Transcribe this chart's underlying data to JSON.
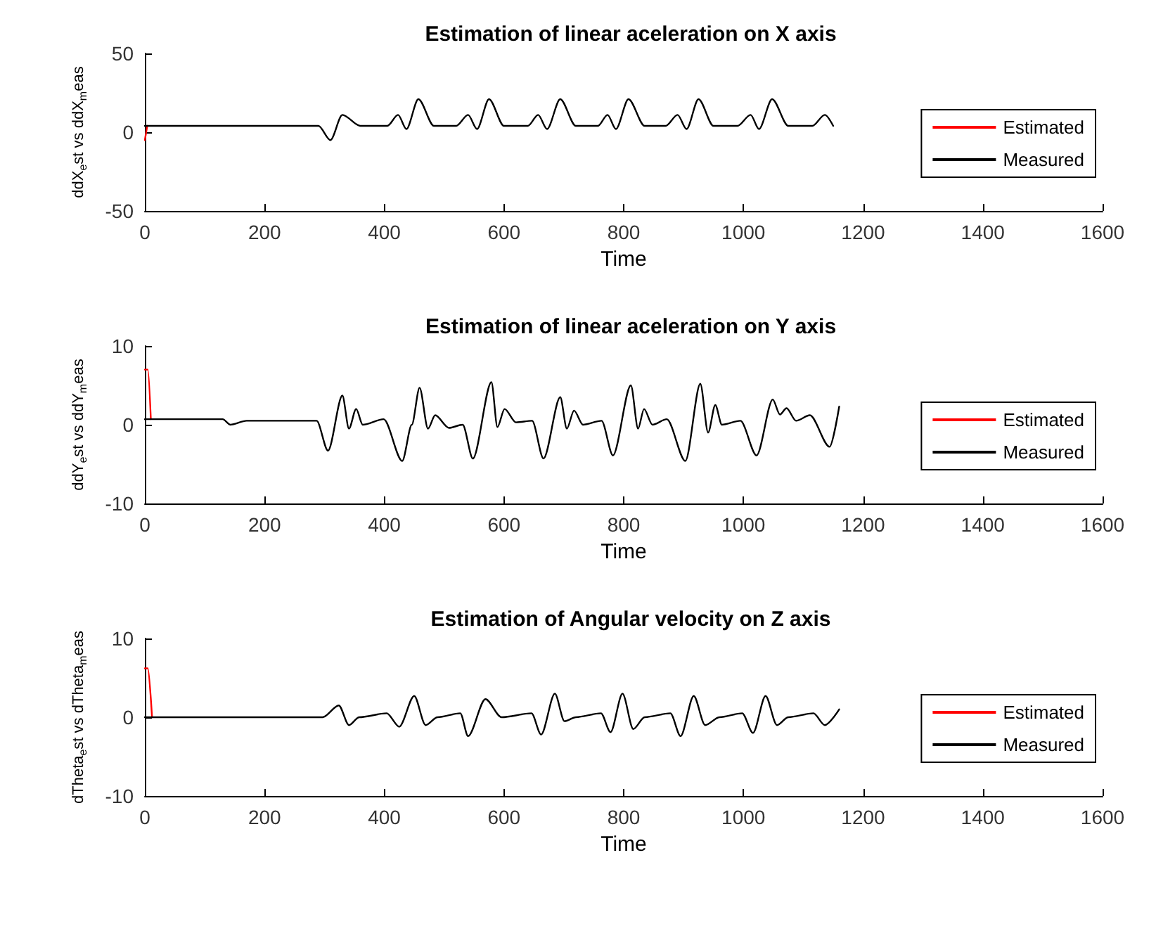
{
  "chart_data": [
    {
      "type": "line",
      "title": "Estimation of linear aceleration on X axis",
      "xlabel": "Time",
      "ylabel": "ddX$_{e}$st vs ddX$_{m}$eas",
      "xlim": [
        0,
        1600
      ],
      "xticks": [
        0,
        200,
        400,
        600,
        800,
        1000,
        1200,
        1400,
        1600
      ],
      "ylim": [
        -50,
        50
      ],
      "yticks": [
        -50,
        0,
        50
      ],
      "grid": false,
      "legend": "right",
      "marker": "none",
      "line_style": "solid",
      "series": [
        {
          "name": "Estimated",
          "color": "#ff0000",
          "x": [
            0,
            4
          ],
          "values": [
            -5,
            4
          ]
        },
        {
          "name": "Measured",
          "color": "#000000",
          "x": [
            0,
            290,
            310,
            330,
            360,
            405,
            423,
            437,
            457,
            483,
            520,
            540,
            555,
            575,
            600,
            640,
            657,
            672,
            694,
            720,
            757,
            773,
            787,
            808,
            835,
            870,
            890,
            905,
            925,
            950,
            990,
            1012,
            1026,
            1048,
            1075,
            1115,
            1136,
            1150
          ],
          "values": [
            4,
            4,
            -5,
            11,
            4,
            4,
            11,
            2,
            21,
            4,
            4,
            11,
            2,
            21,
            4,
            4,
            11,
            2,
            21,
            4,
            4,
            11,
            2,
            21,
            4,
            4,
            11,
            2,
            21,
            4,
            4,
            11,
            2,
            21,
            4,
            4,
            11,
            4
          ]
        }
      ]
    },
    {
      "type": "line",
      "title": "Estimation of linear aceleration on Y axis",
      "xlabel": "Time",
      "ylabel": "ddY$_{e}$st vs ddY$_{m}$eas",
      "xlim": [
        0,
        1600
      ],
      "xticks": [
        0,
        200,
        400,
        600,
        800,
        1000,
        1200,
        1400,
        1600
      ],
      "ylim": [
        -10,
        10
      ],
      "yticks": [
        -10,
        0,
        10
      ],
      "grid": false,
      "legend": "right",
      "marker": "none",
      "line_style": "solid",
      "series": [
        {
          "name": "Estimated",
          "color": "#ff0000",
          "x": [
            0,
            5,
            10
          ],
          "values": [
            7,
            7,
            0.7
          ]
        },
        {
          "name": "Measured",
          "color": "#000000",
          "x": [
            0,
            130,
            143,
            170,
            287,
            306,
            330,
            341,
            353,
            364,
            399,
            430,
            446,
            459,
            473,
            485,
            508,
            531,
            548,
            579,
            589,
            601,
            620,
            647,
            666,
            694,
            705,
            717,
            732,
            763,
            782,
            812,
            824,
            834,
            848,
            872,
            903,
            928,
            941,
            953,
            964,
            995,
            1022,
            1049,
            1061,
            1072,
            1088,
            1111,
            1144,
            1160
          ],
          "values": [
            0.7,
            0.7,
            0,
            0.5,
            0.5,
            -3.3,
            3.7,
            -0.5,
            2,
            0,
            0.7,
            -4.6,
            0,
            4.7,
            -0.5,
            1.2,
            -0.4,
            0,
            -4.3,
            5.4,
            -0.3,
            2,
            0.3,
            0.5,
            -4.3,
            3.5,
            -0.5,
            1.8,
            0,
            0.5,
            -3.9,
            5,
            -0.5,
            2,
            0,
            0.7,
            -4.6,
            5.2,
            -1,
            2.5,
            0,
            0.5,
            -3.9,
            3.2,
            1.3,
            2.1,
            0.5,
            1.2,
            -2.8,
            2.3
          ]
        }
      ]
    },
    {
      "type": "line",
      "title": "Estimation of Angular velocity on Z axis",
      "xlabel": "Time",
      "ylabel": "dTheta$_{e}$st vs dTheta$_{m}$eas",
      "xlim": [
        0,
        1600
      ],
      "xticks": [
        0,
        200,
        400,
        600,
        800,
        1000,
        1200,
        1400,
        1600
      ],
      "ylim": [
        -10,
        10
      ],
      "yticks": [
        -10,
        0,
        10
      ],
      "grid": false,
      "legend": "right",
      "marker": "none",
      "line_style": "solid",
      "series": [
        {
          "name": "Estimated",
          "color": "#ff0000",
          "x": [
            0,
            5,
            12
          ],
          "values": [
            6.2,
            6.2,
            0
          ]
        },
        {
          "name": "Measured",
          "color": "#000000",
          "x": [
            0,
            297,
            324,
            341,
            358,
            404,
            425,
            450,
            469,
            489,
            527,
            540,
            569,
            596,
            646,
            662,
            685,
            701,
            720,
            762,
            778,
            798,
            816,
            835,
            878,
            895,
            917,
            936,
            960,
            998,
            1016,
            1037,
            1056,
            1075,
            1117,
            1136,
            1160
          ],
          "values": [
            0,
            0,
            1.5,
            -1,
            0,
            0.5,
            -1.2,
            2.7,
            -1,
            0,
            0.5,
            -2.4,
            2.3,
            0,
            0.5,
            -2.2,
            3,
            -0.5,
            0,
            0.5,
            -1.9,
            3,
            -1.5,
            0,
            0.5,
            -2.4,
            2.7,
            -1,
            0,
            0.5,
            -2,
            2.7,
            -1,
            0,
            0.5,
            -1,
            1
          ]
        }
      ]
    }
  ]
}
